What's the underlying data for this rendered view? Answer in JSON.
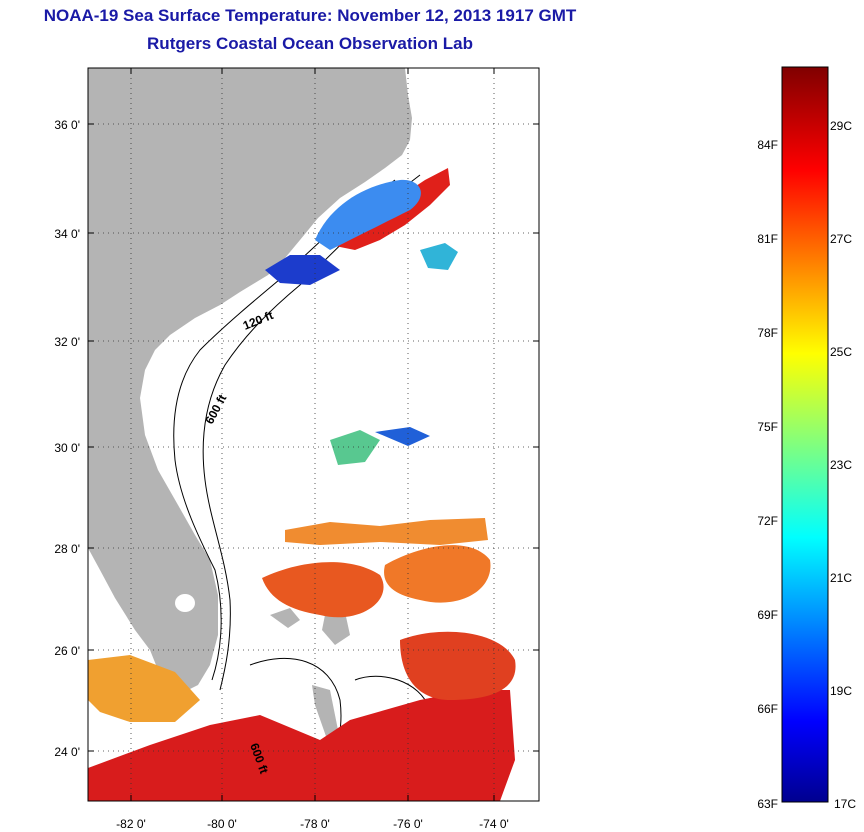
{
  "header": {
    "title": "NOAA-19 Sea Surface Temperature:  November 12, 2013 1917 GMT",
    "subtitle": "Rutgers Coastal Ocean Observation Lab"
  },
  "map": {
    "projection": "lat-lon",
    "lon_range": [
      -83,
      -73.2
    ],
    "lat_range": [
      23.0,
      37.1
    ],
    "lat_ticks": [
      "24 0'",
      "26 0'",
      "28 0'",
      "30 0'",
      "32 0'",
      "34 0'",
      "36 0'"
    ],
    "lon_ticks": [
      "-82 0'",
      "-80 0'",
      "-78 0'",
      "-76 0'",
      "-74 0'"
    ],
    "grid": "dotted",
    "land_color": "#b4b4b4",
    "contours": [
      {
        "label": "120 ft"
      },
      {
        "label": "600 ft"
      },
      {
        "label": "600 ft"
      }
    ]
  },
  "colorbar": {
    "min_c": 17,
    "max_c": 30,
    "celsius_labels": [
      "29C",
      "27C",
      "25C",
      "23C",
      "21C",
      "19C",
      "17C"
    ],
    "fahrenheit_labels": [
      "84F",
      "81F",
      "78F",
      "75F",
      "72F",
      "69F",
      "66F",
      "63F"
    ],
    "colormap": "jet"
  }
}
